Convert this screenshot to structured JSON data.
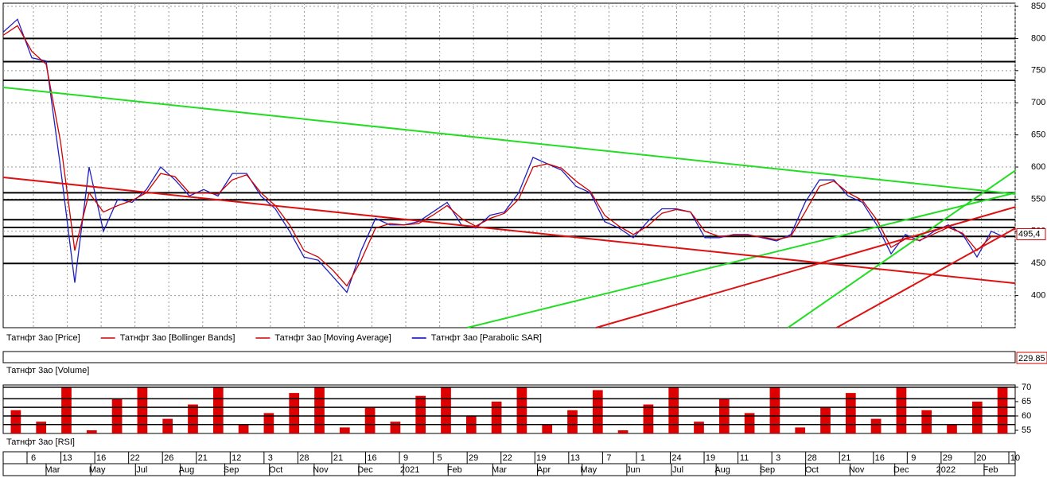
{
  "chart_data": [
    {
      "type": "line",
      "ylim": [
        350,
        855
      ],
      "yticks": [
        400,
        450,
        500,
        550,
        600,
        650,
        700,
        750,
        800,
        850
      ],
      "grid": true,
      "series": [
        {
          "name": "Татнфт 3ао [Price]",
          "color": "#2020c0",
          "values": [
            810,
            830,
            770,
            765,
            600,
            420,
            600,
            500,
            550,
            545,
            565,
            600,
            580,
            555,
            565,
            555,
            590,
            590,
            555,
            535,
            500,
            460,
            455,
            430,
            405,
            470,
            520,
            510,
            510,
            515,
            530,
            545,
            510,
            505,
            525,
            530,
            560,
            615,
            605,
            595,
            570,
            560,
            515,
            505,
            490,
            515,
            535,
            535,
            530,
            490,
            490,
            495,
            495,
            490,
            485,
            495,
            545,
            580,
            580,
            555,
            545,
            510,
            465,
            495,
            485,
            500,
            510,
            495,
            460,
            500,
            490
          ]
        },
        {
          "name": "Татнфт 3ао [Bollinger Bands]",
          "color": "#d00000"
        },
        {
          "name": "Татнфт 3ао [Moving Average]",
          "color": "#d00000",
          "values": [
            805,
            820,
            780,
            760,
            640,
            470,
            560,
            530,
            540,
            548,
            560,
            590,
            585,
            560,
            560,
            558,
            580,
            588,
            560,
            540,
            510,
            470,
            460,
            440,
            415,
            455,
            505,
            512,
            510,
            512,
            525,
            540,
            520,
            508,
            520,
            528,
            550,
            600,
            605,
            598,
            578,
            562,
            525,
            508,
            495,
            508,
            528,
            534,
            530,
            500,
            492,
            494,
            494,
            491,
            487,
            492,
            530,
            570,
            578,
            560,
            548,
            518,
            475,
            488,
            486,
            496,
            506,
            497,
            470,
            492,
            492
          ]
        },
        {
          "name": "Татнфт 3ао [Parabolic SAR]",
          "color": "#0000c0"
        }
      ],
      "hlines": [
        800,
        764,
        735,
        560,
        549,
        518,
        506,
        492,
        450
      ],
      "trendlines": [
        {
          "color": "#22dd22",
          "start": [
            0,
            724
          ],
          "end": [
            70.7,
            558
          ]
        },
        {
          "color": "#22dd22",
          "start": [
            32.4,
            350
          ],
          "end": [
            70.7,
            560
          ]
        },
        {
          "color": "#22dd22",
          "start": [
            54.8,
            350
          ],
          "end": [
            70.7,
            595
          ]
        },
        {
          "color": "#dd1111",
          "start": [
            0,
            584
          ],
          "end": [
            70.7,
            419
          ]
        },
        {
          "color": "#dd1111",
          "start": [
            41.4,
            350
          ],
          "end": [
            70.7,
            538
          ]
        },
        {
          "color": "#dd1111",
          "start": [
            58.2,
            350
          ],
          "end": [
            70.7,
            505
          ]
        }
      ],
      "last_value": {
        "value": 495.4,
        "label": "495,4"
      }
    },
    {
      "type": "volume",
      "title": "Татнфт 3ао [Volume]",
      "last_value": 229.85
    },
    {
      "type": "bar",
      "title": "Татнфт 3ао [RSI]",
      "color": "#dd0000",
      "ylim": [
        53.9,
        70.8
      ],
      "yticks": [
        55,
        60,
        65,
        70
      ],
      "hlines": [
        70,
        66,
        63,
        60,
        57
      ],
      "values": [
        62,
        58,
        70,
        55,
        66,
        70,
        59,
        64,
        70,
        57,
        61,
        68,
        70,
        56,
        63,
        58,
        67,
        70,
        60,
        65,
        70,
        57,
        62,
        69,
        55,
        64,
        70,
        58,
        66,
        61,
        70,
        56,
        63,
        68,
        59,
        70,
        62,
        57,
        65,
        70
      ]
    }
  ],
  "time_axis": {
    "days": [
      "6",
      "13",
      "16",
      "22",
      "26",
      "21",
      "12",
      "3",
      "28",
      "21",
      "16",
      "9",
      "5",
      "29",
      "22",
      "19",
      "13",
      "7",
      "1",
      "24",
      "19",
      "11",
      "3",
      "28",
      "21",
      "16",
      "9",
      "29",
      "20",
      "10"
    ],
    "months": [
      "Mar",
      "May",
      "Jul",
      "Aug",
      "Sep",
      "Oct",
      "Nov",
      "Dec",
      "2021",
      "Feb",
      "Mar",
      "Apr",
      "May",
      "Jun",
      "Jul",
      "Aug",
      "Sep",
      "Oct",
      "Nov",
      "Dec",
      "2022",
      "Feb"
    ]
  }
}
